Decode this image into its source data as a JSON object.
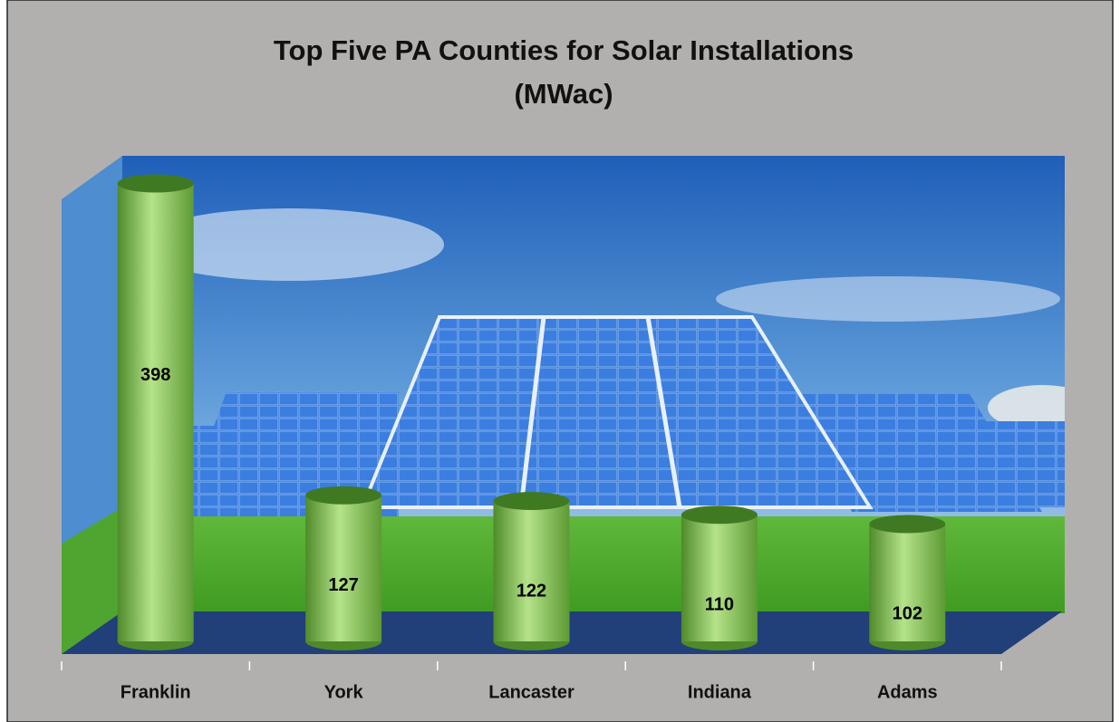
{
  "chart_data": {
    "type": "bar3d",
    "title": [
      "Top Five PA Counties for Solar Installations",
      "(MWac)"
    ],
    "categories": [
      "Franklin",
      "York",
      "Lancaster",
      "Indiana",
      "Adams"
    ],
    "values": [
      398,
      127,
      122,
      110,
      102
    ],
    "color": "#6aa83c"
  }
}
